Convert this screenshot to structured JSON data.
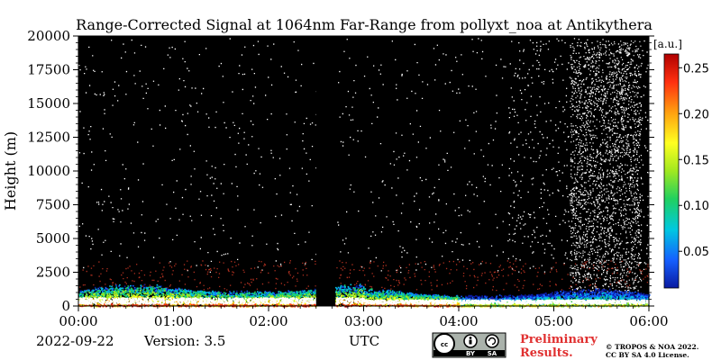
{
  "chart_data": {
    "type": "heatmap",
    "title": "Range-Corrected Signal at 1064nm Far-Range from pollyxt_noa at Antikythera",
    "ylabel": "Height (m)",
    "xlabel": "UTC",
    "x_ticks": [
      "00:00",
      "01:00",
      "02:00",
      "03:00",
      "04:00",
      "05:00",
      "06:00"
    ],
    "y_ticks": [
      0,
      2500,
      5000,
      7500,
      10000,
      12500,
      15000,
      17500,
      20000
    ],
    "xlim": [
      "00:00",
      "06:00"
    ],
    "ylim": [
      0,
      20000
    ],
    "colorbar": {
      "unit": "[a.u.]",
      "ticks": [
        0.05,
        0.1,
        0.15,
        0.2,
        0.25
      ],
      "tick_labels": [
        "0.05",
        "0.10",
        "0.15",
        "0.20",
        "0.25"
      ],
      "range": [
        0.01,
        0.265
      ],
      "colormap": [
        "#0a1aa0",
        "#1560ff",
        "#00c8e0",
        "#20d060",
        "#a0e820",
        "#ffff20",
        "#ffa010",
        "#ff3010",
        "#b00000"
      ]
    },
    "background_color": "#000000",
    "gap_interval": [
      "02:30",
      "02:42"
    ]
  },
  "footer": {
    "date": "2022-09-22",
    "version": "Version: 3.5",
    "axis_unit": "UTC",
    "preliminary_line1": "Preliminary",
    "preliminary_line2": "Results.",
    "license_line1": "© TROPOS & NOA 2022.",
    "license_line2": "CC BY SA 4.0 License.",
    "cc_badge": {
      "cc": "cc",
      "by": "BY",
      "sa": "SA"
    }
  }
}
